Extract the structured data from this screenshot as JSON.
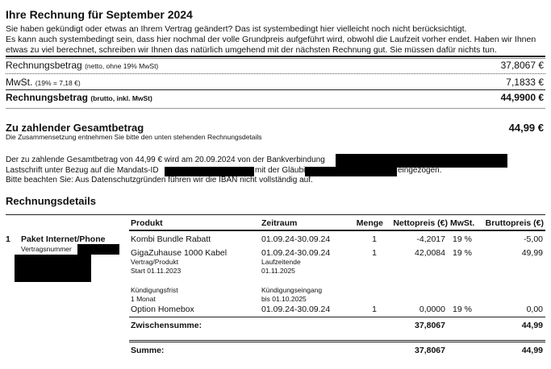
{
  "title": "Ihre Rechnung für September 2024",
  "notice": [
    "Sie haben gekündigt oder etwas an Ihrem Vertrag geändert? Das ist systembedingt hier vielleicht noch nicht berücksichtigt.",
    "Es kann auch systembedingt sein, dass hier nochmal der volle Grundpreis aufgeführt wird, obwohl die Laufzeit vorher endet. Haben wir Ihnen",
    "etwas zu viel berechnet, schreiben wir Ihnen das natürlich umgehend mit der nächsten Rechnung gut. Sie müssen dafür nichts tun."
  ],
  "summary": {
    "netto_label": "Rechnungsbetrag",
    "netto_note": "(netto, ohne 19% MwSt)",
    "netto_value": "37,8067 €",
    "mwst_label": "MwSt.",
    "mwst_note": "(19% = 7,18 €)",
    "mwst_value": "7,1833 €",
    "brutto_label": "Rechnungsbetrag",
    "brutto_note": "(brutto, inkl. MwSt)",
    "brutto_value": "44,9900 €"
  },
  "total": {
    "label": "Zu zahlender Gesamtbetrag",
    "note": "Die Zusammensetzung entnehmen Sie bitte den unten stehenden Rechnungsdetails",
    "value": "44,99 €"
  },
  "payment": {
    "line1": "Der zu zahlende Gesamtbetrag von 44,99 € wird am 20.09.2024 von der Bankverbindung",
    "line2a": "Lastschrift unter Bezug auf die Mandats-ID",
    "line2b": "mit der Gläubiger-",
    "line2c": "eingezogen.",
    "line3": "Bitte beachten Sie: Aus Datenschutzgründen führen wir die IBAN nicht vollständig auf."
  },
  "details": {
    "heading": "Rechnungsdetails",
    "columns": [
      "Produkt",
      "Zeitraum",
      "Menge",
      "Nettopreis (€)",
      "MwSt.",
      "Bruttopreis (€)"
    ],
    "position": {
      "number": "1",
      "name": "Paket Internet/Phone",
      "contract_label": "Vertragsnummer"
    },
    "rows": [
      {
        "product": "Kombi Bundle Rabatt",
        "period": "01.09.24-30.09.24",
        "qty": "1",
        "net": "-4,2017",
        "vat": "19 %",
        "gross": "-5,00"
      },
      {
        "product": "GigaZuhause 1000 Kabel",
        "period": "01.09.24-30.09.24",
        "qty": "1",
        "net": "42,0084",
        "vat": "19 %",
        "gross": "49,99"
      },
      {
        "product": "Option Homebox",
        "period": "01.09.24-30.09.24",
        "qty": "1",
        "net": "0,0000",
        "vat": "19 %",
        "gross": "0,00"
      }
    ],
    "extra": {
      "start_label": "Vertrag/Produkt",
      "start_value": "Start 01.11.2023",
      "end_label": "Laufzeitende",
      "end_value": "01.11.2025",
      "notice_label": "Kündigungsfrist",
      "notice_value": "1 Monat",
      "cancel_label": "Kündigungseingang",
      "cancel_value": "bis 01.10.2025"
    },
    "subtotal": {
      "label": "Zwischensumme:",
      "net": "37,8067",
      "gross": "44,99"
    },
    "sum": {
      "label": "Summe:",
      "net": "37,8067",
      "gross": "44,99"
    }
  }
}
